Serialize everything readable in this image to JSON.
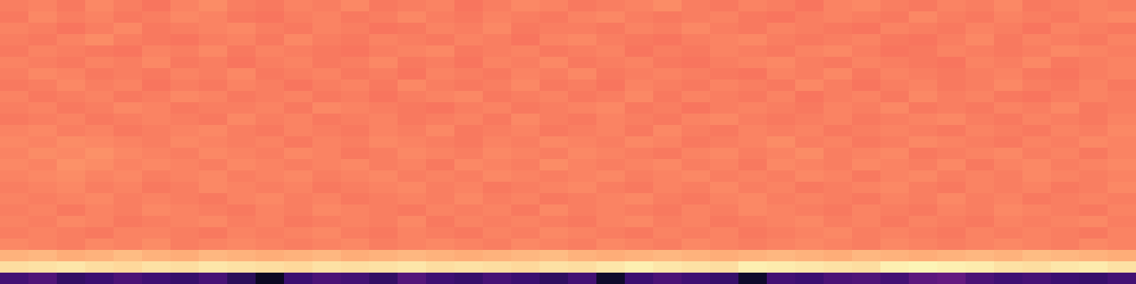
{
  "chart_data": {
    "type": "heatmap",
    "tick_labels": false,
    "zlim": [
      0,
      1
    ],
    "values": [
      [
        0.73,
        0.74,
        0.72,
        0.75,
        0.73,
        0.71,
        0.74,
        0.76,
        0.73,
        0.72,
        0.74,
        0.73,
        0.75,
        0.72,
        0.73,
        0.74,
        0.71,
        0.73,
        0.75,
        0.74,
        0.72,
        0.73,
        0.74,
        0.76,
        0.73,
        0.72,
        0.74,
        0.73,
        0.71,
        0.74,
        0.75,
        0.73,
        0.72,
        0.74,
        0.73,
        0.75,
        0.72,
        0.73,
        0.74,
        0.73
      ],
      [
        0.72,
        0.75,
        0.73,
        0.74,
        0.72,
        0.73,
        0.75,
        0.74,
        0.72,
        0.71,
        0.73,
        0.74,
        0.72,
        0.73,
        0.75,
        0.73,
        0.72,
        0.74,
        0.73,
        0.72,
        0.74,
        0.75,
        0.73,
        0.72,
        0.73,
        0.74,
        0.72,
        0.71,
        0.73,
        0.74,
        0.73,
        0.72,
        0.75,
        0.73,
        0.72,
        0.74,
        0.73,
        0.72,
        0.74,
        0.75
      ],
      [
        0.74,
        0.73,
        0.71,
        0.73,
        0.75,
        0.72,
        0.73,
        0.74,
        0.75,
        0.73,
        0.72,
        0.74,
        0.73,
        0.71,
        0.72,
        0.74,
        0.73,
        0.75,
        0.72,
        0.73,
        0.73,
        0.72,
        0.74,
        0.73,
        0.75,
        0.73,
        0.72,
        0.74,
        0.73,
        0.72,
        0.71,
        0.74,
        0.73,
        0.72,
        0.74,
        0.73,
        0.71,
        0.74,
        0.73,
        0.72
      ],
      [
        0.73,
        0.72,
        0.74,
        0.76,
        0.73,
        0.72,
        0.71,
        0.73,
        0.74,
        0.72,
        0.75,
        0.73,
        0.72,
        0.74,
        0.73,
        0.72,
        0.74,
        0.73,
        0.71,
        0.74,
        0.75,
        0.73,
        0.72,
        0.71,
        0.73,
        0.74,
        0.75,
        0.73,
        0.72,
        0.73,
        0.74,
        0.72,
        0.71,
        0.73,
        0.75,
        0.72,
        0.74,
        0.73,
        0.72,
        0.74
      ],
      [
        0.72,
        0.74,
        0.73,
        0.72,
        0.71,
        0.74,
        0.73,
        0.75,
        0.72,
        0.74,
        0.73,
        0.72,
        0.71,
        0.73,
        0.74,
        0.75,
        0.72,
        0.73,
        0.74,
        0.72,
        0.73,
        0.74,
        0.71,
        0.73,
        0.72,
        0.74,
        0.73,
        0.72,
        0.74,
        0.75,
        0.73,
        0.71,
        0.72,
        0.74,
        0.73,
        0.72,
        0.73,
        0.75,
        0.74,
        0.73
      ],
      [
        0.74,
        0.73,
        0.72,
        0.74,
        0.73,
        0.75,
        0.72,
        0.73,
        0.71,
        0.73,
        0.74,
        0.72,
        0.73,
        0.75,
        0.72,
        0.73,
        0.71,
        0.74,
        0.73,
        0.75,
        0.72,
        0.73,
        0.74,
        0.72,
        0.71,
        0.73,
        0.74,
        0.75,
        0.73,
        0.72,
        0.74,
        0.73,
        0.72,
        0.71,
        0.74,
        0.73,
        0.75,
        0.72,
        0.73,
        0.74
      ],
      [
        0.73,
        0.75,
        0.74,
        0.72,
        0.73,
        0.72,
        0.74,
        0.73,
        0.75,
        0.72,
        0.73,
        0.74,
        0.72,
        0.73,
        0.71,
        0.74,
        0.73,
        0.72,
        0.74,
        0.73,
        0.75,
        0.72,
        0.73,
        0.74,
        0.73,
        0.72,
        0.71,
        0.74,
        0.73,
        0.75,
        0.72,
        0.74,
        0.73,
        0.72,
        0.73,
        0.74,
        0.72,
        0.71,
        0.73,
        0.74
      ],
      [
        0.72,
        0.73,
        0.75,
        0.73,
        0.74,
        0.71,
        0.73,
        0.72,
        0.74,
        0.73,
        0.71,
        0.73,
        0.74,
        0.72,
        0.75,
        0.73,
        0.72,
        0.73,
        0.75,
        0.72,
        0.73,
        0.71,
        0.74,
        0.73,
        0.72,
        0.74,
        0.73,
        0.72,
        0.75,
        0.73,
        0.71,
        0.73,
        0.74,
        0.72,
        0.73,
        0.75,
        0.73,
        0.72,
        0.74,
        0.72
      ],
      [
        0.74,
        0.72,
        0.73,
        0.74,
        0.72,
        0.73,
        0.75,
        0.74,
        0.72,
        0.73,
        0.74,
        0.72,
        0.73,
        0.71,
        0.73,
        0.74,
        0.75,
        0.72,
        0.73,
        0.74,
        0.72,
        0.73,
        0.75,
        0.72,
        0.74,
        0.73,
        0.72,
        0.74,
        0.71,
        0.73,
        0.74,
        0.72,
        0.75,
        0.73,
        0.74,
        0.72,
        0.71,
        0.73,
        0.74,
        0.73
      ],
      [
        0.73,
        0.74,
        0.72,
        0.73,
        0.75,
        0.74,
        0.72,
        0.73,
        0.73,
        0.74,
        0.72,
        0.75,
        0.74,
        0.73,
        0.72,
        0.71,
        0.73,
        0.74,
        0.72,
        0.73,
        0.74,
        0.75,
        0.72,
        0.73,
        0.71,
        0.73,
        0.74,
        0.73,
        0.72,
        0.74,
        0.73,
        0.75,
        0.72,
        0.73,
        0.72,
        0.74,
        0.73,
        0.75,
        0.72,
        0.73
      ],
      [
        0.72,
        0.73,
        0.74,
        0.72,
        0.73,
        0.74,
        0.73,
        0.72,
        0.75,
        0.73,
        0.74,
        0.72,
        0.73,
        0.74,
        0.72,
        0.73,
        0.74,
        0.72,
        0.75,
        0.73,
        0.72,
        0.74,
        0.73,
        0.72,
        0.74,
        0.75,
        0.73,
        0.72,
        0.73,
        0.74,
        0.72,
        0.73,
        0.74,
        0.75,
        0.73,
        0.72,
        0.74,
        0.73,
        0.72,
        0.74
      ],
      [
        0.74,
        0.75,
        0.73,
        0.74,
        0.72,
        0.73,
        0.74,
        0.75,
        0.73,
        0.72,
        0.74,
        0.73,
        0.72,
        0.74,
        0.73,
        0.75,
        0.72,
        0.73,
        0.74,
        0.72,
        0.73,
        0.74,
        0.72,
        0.75,
        0.73,
        0.72,
        0.74,
        0.73,
        0.74,
        0.72,
        0.73,
        0.74,
        0.73,
        0.72,
        0.74,
        0.73,
        0.72,
        0.74,
        0.73,
        0.75
      ],
      [
        0.75,
        0.74,
        0.76,
        0.75,
        0.74,
        0.73,
        0.75,
        0.74,
        0.73,
        0.74,
        0.72,
        0.74,
        0.73,
        0.75,
        0.74,
        0.73,
        0.72,
        0.74,
        0.73,
        0.75,
        0.74,
        0.73,
        0.75,
        0.74,
        0.72,
        0.73,
        0.74,
        0.76,
        0.73,
        0.74,
        0.72,
        0.73,
        0.75,
        0.74,
        0.73,
        0.72,
        0.74,
        0.73,
        0.75,
        0.74
      ],
      [
        0.74,
        0.76,
        0.75,
        0.77,
        0.75,
        0.74,
        0.73,
        0.75,
        0.74,
        0.73,
        0.75,
        0.74,
        0.72,
        0.73,
        0.75,
        0.74,
        0.73,
        0.75,
        0.74,
        0.73,
        0.75,
        0.74,
        0.73,
        0.72,
        0.74,
        0.75,
        0.73,
        0.74,
        0.76,
        0.73,
        0.74,
        0.75,
        0.72,
        0.73,
        0.74,
        0.75,
        0.73,
        0.74,
        0.72,
        0.74
      ],
      [
        0.75,
        0.74,
        0.77,
        0.76,
        0.74,
        0.75,
        0.74,
        0.73,
        0.75,
        0.74,
        0.73,
        0.74,
        0.75,
        0.73,
        0.74,
        0.72,
        0.75,
        0.74,
        0.73,
        0.76,
        0.74,
        0.73,
        0.74,
        0.75,
        0.73,
        0.74,
        0.72,
        0.75,
        0.74,
        0.73,
        0.75,
        0.74,
        0.73,
        0.75,
        0.72,
        0.74,
        0.75,
        0.73,
        0.74,
        0.75
      ],
      [
        0.74,
        0.75,
        0.76,
        0.74,
        0.75,
        0.73,
        0.74,
        0.75,
        0.73,
        0.74,
        0.75,
        0.73,
        0.74,
        0.75,
        0.73,
        0.74,
        0.73,
        0.75,
        0.74,
        0.73,
        0.74,
        0.75,
        0.73,
        0.74,
        0.75,
        0.73,
        0.74,
        0.73,
        0.75,
        0.74,
        0.72,
        0.74,
        0.75,
        0.73,
        0.74,
        0.73,
        0.75,
        0.74,
        0.73,
        0.74
      ],
      [
        0.73,
        0.74,
        0.75,
        0.73,
        0.74,
        0.72,
        0.73,
        0.75,
        0.74,
        0.73,
        0.74,
        0.72,
        0.73,
        0.74,
        0.75,
        0.73,
        0.74,
        0.72,
        0.73,
        0.74,
        0.75,
        0.73,
        0.72,
        0.74,
        0.73,
        0.75,
        0.73,
        0.74,
        0.72,
        0.73,
        0.74,
        0.75,
        0.73,
        0.72,
        0.74,
        0.73,
        0.74,
        0.72,
        0.73,
        0.75
      ],
      [
        0.74,
        0.73,
        0.74,
        0.75,
        0.73,
        0.74,
        0.73,
        0.72,
        0.74,
        0.75,
        0.73,
        0.74,
        0.72,
        0.73,
        0.74,
        0.73,
        0.75,
        0.73,
        0.74,
        0.72,
        0.73,
        0.74,
        0.75,
        0.73,
        0.72,
        0.74,
        0.75,
        0.73,
        0.74,
        0.73,
        0.72,
        0.74,
        0.73,
        0.75,
        0.73,
        0.74,
        0.72,
        0.73,
        0.74,
        0.73
      ],
      [
        0.73,
        0.74,
        0.72,
        0.74,
        0.73,
        0.75,
        0.74,
        0.73,
        0.72,
        0.74,
        0.73,
        0.75,
        0.74,
        0.73,
        0.72,
        0.74,
        0.73,
        0.74,
        0.72,
        0.75,
        0.73,
        0.74,
        0.73,
        0.72,
        0.74,
        0.73,
        0.75,
        0.74,
        0.73,
        0.72,
        0.74,
        0.73,
        0.72,
        0.74,
        0.73,
        0.75,
        0.74,
        0.73,
        0.72,
        0.74
      ],
      [
        0.74,
        0.73,
        0.75,
        0.74,
        0.72,
        0.73,
        0.74,
        0.75,
        0.73,
        0.74,
        0.72,
        0.73,
        0.74,
        0.73,
        0.75,
        0.72,
        0.74,
        0.73,
        0.74,
        0.73,
        0.72,
        0.74,
        0.75,
        0.73,
        0.74,
        0.72,
        0.73,
        0.74,
        0.75,
        0.73,
        0.74,
        0.72,
        0.74,
        0.73,
        0.72,
        0.74,
        0.73,
        0.74,
        0.75,
        0.73
      ],
      [
        0.73,
        0.74,
        0.73,
        0.72,
        0.74,
        0.74,
        0.73,
        0.72,
        0.74,
        0.73,
        0.74,
        0.75,
        0.73,
        0.72,
        0.74,
        0.73,
        0.72,
        0.74,
        0.73,
        0.75,
        0.74,
        0.73,
        0.72,
        0.74,
        0.73,
        0.74,
        0.72,
        0.73,
        0.74,
        0.75,
        0.73,
        0.74,
        0.73,
        0.72,
        0.74,
        0.73,
        0.74,
        0.73,
        0.72,
        0.74
      ],
      [
        0.75,
        0.74,
        0.73,
        0.75,
        0.74,
        0.76,
        0.73,
        0.74,
        0.75,
        0.74,
        0.73,
        0.74,
        0.75,
        0.73,
        0.74,
        0.75,
        0.74,
        0.73,
        0.75,
        0.74,
        0.73,
        0.75,
        0.74,
        0.73,
        0.75,
        0.74,
        0.73,
        0.74,
        0.75,
        0.74,
        0.73,
        0.75,
        0.74,
        0.73,
        0.74,
        0.75,
        0.74,
        0.73,
        0.75,
        0.74
      ],
      [
        0.84,
        0.85,
        0.83,
        0.84,
        0.86,
        0.84,
        0.83,
        0.85,
        0.84,
        0.83,
        0.84,
        0.85,
        0.83,
        0.84,
        0.85,
        0.84,
        0.83,
        0.84,
        0.85,
        0.86,
        0.84,
        0.83,
        0.84,
        0.85,
        0.84,
        0.83,
        0.84,
        0.85,
        0.84,
        0.83,
        0.85,
        0.84,
        0.83,
        0.84,
        0.85,
        0.84,
        0.86,
        0.85,
        0.84,
        0.83
      ],
      [
        0.93,
        0.94,
        0.95,
        0.93,
        0.92,
        0.94,
        0.93,
        0.95,
        0.94,
        0.93,
        0.92,
        0.94,
        0.93,
        0.94,
        0.95,
        0.93,
        0.94,
        0.93,
        0.92,
        0.94,
        0.93,
        0.95,
        0.97,
        0.95,
        0.94,
        0.93,
        0.97,
        0.96,
        0.95,
        0.94,
        0.93,
        0.97,
        0.98,
        0.97,
        0.96,
        0.94,
        0.93,
        0.95,
        0.96,
        0.94
      ],
      [
        0.22,
        0.25,
        0.18,
        0.2,
        0.24,
        0.21,
        0.19,
        0.23,
        0.16,
        0.06,
        0.2,
        0.24,
        0.22,
        0.18,
        0.26,
        0.21,
        0.19,
        0.23,
        0.2,
        0.17,
        0.22,
        0.08,
        0.2,
        0.24,
        0.21,
        0.19,
        0.08,
        0.22,
        0.2,
        0.24,
        0.25,
        0.22,
        0.28,
        0.3,
        0.24,
        0.21,
        0.23,
        0.2,
        0.19,
        0.22
      ]
    ]
  }
}
